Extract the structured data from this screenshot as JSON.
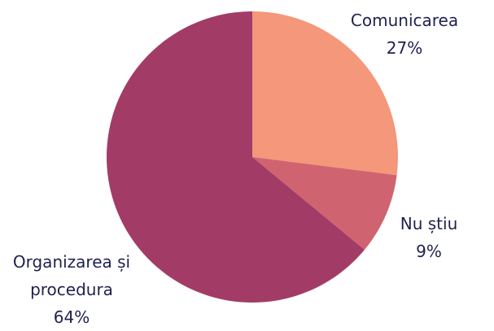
{
  "chart_data": {
    "type": "pie",
    "categories": [
      "Comunicarea",
      "Nu știu",
      "Organizarea și procedura"
    ],
    "values": [
      27,
      9,
      64
    ],
    "value_labels": [
      "27%",
      "9%",
      "64%"
    ],
    "colors": [
      "#f4977a",
      "#cf6470",
      "#a23c66"
    ]
  }
}
